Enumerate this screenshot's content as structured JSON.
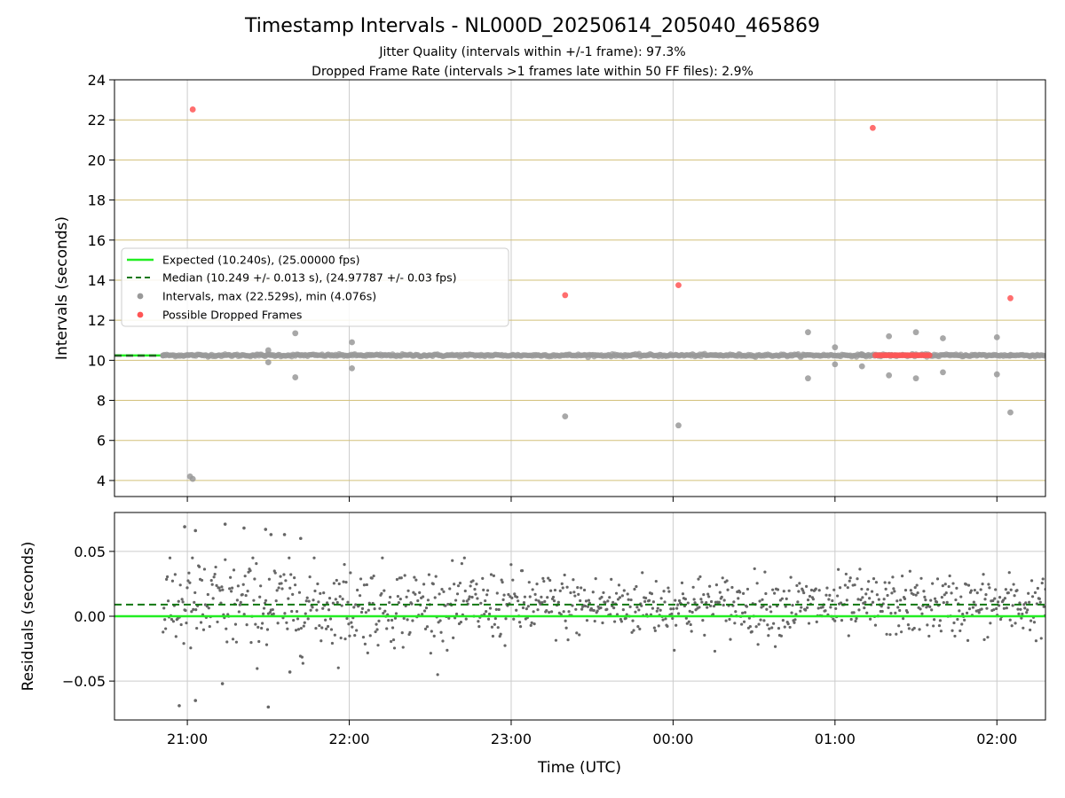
{
  "chart_data": {
    "title": "Timestamp Intervals - NL000D_20250614_205040_465869",
    "subtitles": [
      "Jitter Quality (intervals within +/-1 frame): 97.3%",
      "Dropped Frame Rate (intervals >1 frames late within 50 FF files): 2.9%"
    ],
    "xlabel": "Time (UTC)",
    "xlim": [
      "20:33",
      "02:18"
    ],
    "x_ticks": [
      "21:00",
      "22:00",
      "23:00",
      "00:00",
      "01:00",
      "02:00"
    ],
    "x_tick_minutes": [
      0,
      60,
      120,
      180,
      240,
      300
    ],
    "x_minutes_zero": "21:00",
    "colors": {
      "expected": "#22ee22",
      "median": "#117711",
      "intervals": "#999999",
      "dropped": "#ff5555",
      "top_grid": "#d2c07a",
      "grid": "#cccccc",
      "residuals": "#666666"
    },
    "panels": [
      {
        "type": "scatter",
        "ylabel": "Intervals (seconds)",
        "ylim": [
          3.2,
          24
        ],
        "y_ticks": [
          4,
          6,
          8,
          10,
          12,
          14,
          16,
          18,
          20,
          22,
          24
        ],
        "grid": "horizontal",
        "legend_position": "center-left",
        "legend": [
          "Expected (10.240s), (25.00000 fps)",
          "Median (10.249 +/- 0.013 s), (24.97787 +/- 0.03 fps)",
          "Intervals, max (22.529s), min (4.076s)",
          "Possible Dropped Frames"
        ],
        "expected": 10.24,
        "median": 10.249,
        "intervals": {
          "x": [
            -9,
            1,
            2,
            30,
            30,
            40,
            40,
            61,
            61,
            230,
            230,
            240,
            240,
            250,
            250,
            260,
            260,
            270,
            270,
            280,
            280,
            300,
            300,
            305,
            305
          ],
          "y": [
            10.24,
            4.2,
            4.08,
            10.5,
            9.9,
            11.35,
            9.15,
            10.9,
            9.6,
            11.4,
            9.1,
            10.65,
            9.8,
            9.7,
            10.25,
            11.2,
            9.25,
            11.4,
            9.1,
            11.1,
            9.4,
            11.15,
            9.3,
            10.24,
            7.4
          ]
        },
        "outliers": {
          "x": [
            140,
            182
          ],
          "y": [
            7.2,
            6.75
          ]
        },
        "dropped": {
          "x": [
            2,
            140,
            182,
            254,
            255,
            256,
            257,
            258,
            259,
            260,
            261,
            262,
            263,
            264,
            265,
            266,
            267,
            268,
            269,
            270,
            271,
            272,
            273,
            274,
            275,
            305
          ],
          "y": [
            22.52,
            13.25,
            13.75,
            21.6,
            10.25,
            10.25,
            10.25,
            10.25,
            10.25,
            10.25,
            10.25,
            10.25,
            10.25,
            10.25,
            10.25,
            10.25,
            10.25,
            10.25,
            10.25,
            10.25,
            10.25,
            10.25,
            10.25,
            10.25,
            10.25,
            13.1
          ]
        }
      },
      {
        "type": "scatter",
        "ylabel": "Residuals (seconds)",
        "ylim": [
          -0.08,
          0.08
        ],
        "y_ticks": [
          0.05,
          0.0,
          -0.05
        ],
        "y_tick_labels": [
          "0.05",
          "0.00",
          "−0.05"
        ],
        "grid": "both",
        "expected": 0.0,
        "median": 0.009,
        "residual_spread": {
          "x_start": -9,
          "x_end": 345,
          "sd_early": 0.02,
          "sd_late": 0.012,
          "mean": 0.008
        },
        "residual_outliers": {
          "x": [
            -1,
            3,
            14,
            21,
            29,
            31,
            36,
            42,
            -3,
            3,
            13,
            30,
            38
          ],
          "y": [
            0.069,
            0.066,
            0.071,
            0.068,
            0.067,
            0.063,
            0.063,
            0.06,
            -0.069,
            -0.065,
            -0.052,
            -0.07,
            -0.043
          ]
        }
      }
    ]
  }
}
